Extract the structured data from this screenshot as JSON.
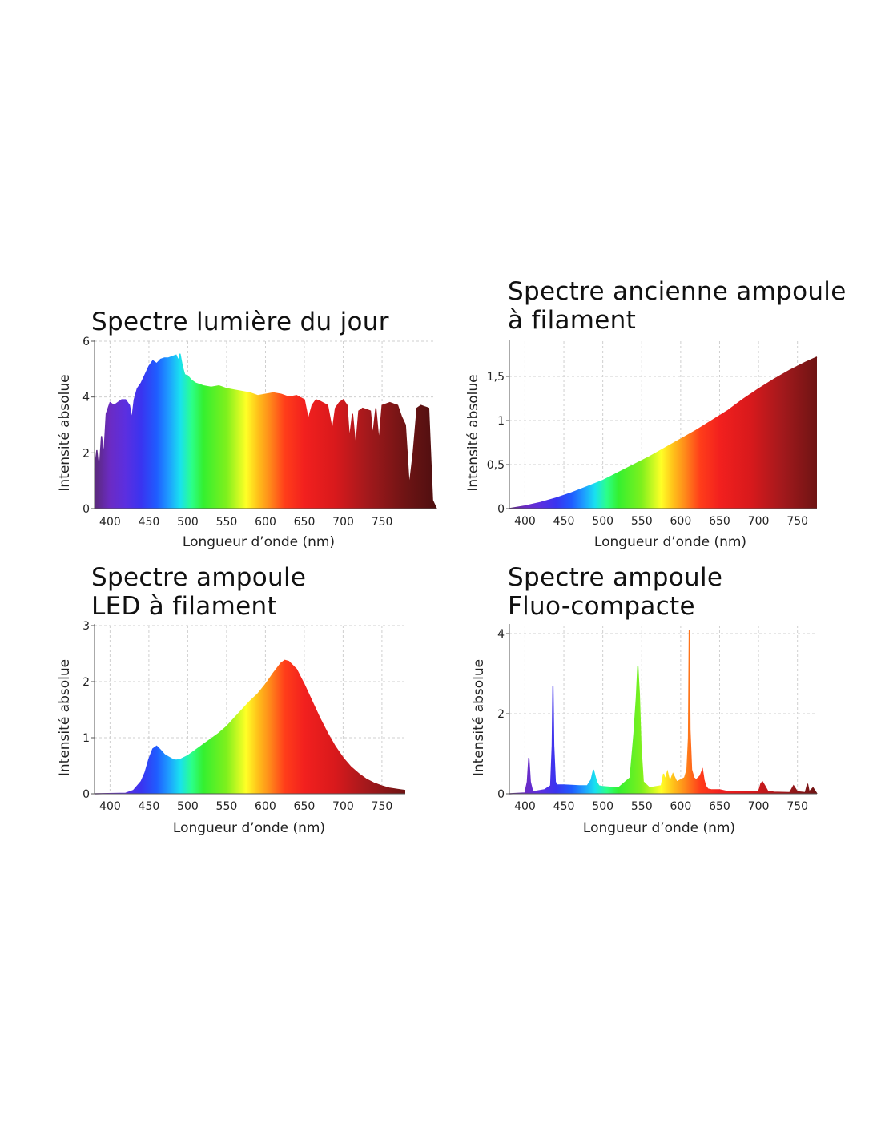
{
  "chart_data": [
    {
      "type": "area",
      "title_lines": [
        "Spectre lumière du jour"
      ],
      "xlabel": "Longueur d’onde (nm)",
      "ylabel": "Intensité absolue",
      "xlim": [
        380,
        820
      ],
      "ylim": [
        0,
        6
      ],
      "x_ticks": [
        400,
        450,
        500,
        550,
        600,
        650,
        700,
        750
      ],
      "x_tick_labels": [
        "400",
        "450",
        "500",
        "550",
        "600",
        "650",
        "700",
        "750"
      ],
      "y_ticks": [
        0,
        2,
        4,
        6
      ],
      "y_tick_labels": [
        "0",
        "2",
        "4",
        "6"
      ],
      "grid": true,
      "fill": "spectrum-gradient",
      "series": [
        {
          "x": [
            380,
            383,
            386,
            389,
            392,
            395,
            400,
            405,
            410,
            415,
            420,
            425,
            428,
            431,
            435,
            440,
            445,
            450,
            455,
            460,
            465,
            470,
            475,
            480,
            485,
            488,
            490,
            493,
            496,
            500,
            505,
            510,
            520,
            530,
            540,
            550,
            560,
            570,
            580,
            590,
            600,
            610,
            620,
            630,
            640,
            650,
            655,
            660,
            665,
            670,
            680,
            686,
            690,
            695,
            700,
            705,
            708,
            712,
            716,
            720,
            725,
            730,
            735,
            738,
            742,
            746,
            750,
            755,
            760,
            765,
            770,
            775,
            780,
            785,
            790,
            795,
            800,
            805,
            810,
            815,
            820
          ],
          "y": [
            1.4,
            2.1,
            1.3,
            2.6,
            1.9,
            3.4,
            3.8,
            3.7,
            3.8,
            3.9,
            3.9,
            3.7,
            3.2,
            3.9,
            4.3,
            4.5,
            4.8,
            5.1,
            5.3,
            5.2,
            5.35,
            5.4,
            5.4,
            5.45,
            5.5,
            5.3,
            5.55,
            5.1,
            4.8,
            4.75,
            4.6,
            4.5,
            4.4,
            4.35,
            4.4,
            4.3,
            4.25,
            4.2,
            4.15,
            4.05,
            4.1,
            4.15,
            4.1,
            4.0,
            4.05,
            3.9,
            3.2,
            3.7,
            3.9,
            3.85,
            3.7,
            2.8,
            3.6,
            3.8,
            3.9,
            3.7,
            2.5,
            3.4,
            2.2,
            3.5,
            3.6,
            3.55,
            3.5,
            2.6,
            3.6,
            2.4,
            3.7,
            3.75,
            3.8,
            3.75,
            3.7,
            3.3,
            3.0,
            0.8,
            2.0,
            3.6,
            3.7,
            3.65,
            3.6,
            0.3,
            0
          ]
        }
      ]
    },
    {
      "type": "area",
      "title_lines": [
        "Spectre ancienne ampoule",
        "à filament"
      ],
      "xlabel": "Longueur d’onde (nm)",
      "ylabel": "Intensité absolue",
      "xlim": [
        380,
        775
      ],
      "ylim": [
        0,
        1.9
      ],
      "x_ticks": [
        400,
        450,
        500,
        550,
        600,
        650,
        700,
        750
      ],
      "x_tick_labels": [
        "400",
        "450",
        "500",
        "550",
        "600",
        "650",
        "700",
        "750"
      ],
      "y_ticks": [
        0,
        0.5,
        1,
        1.5
      ],
      "y_tick_labels": [
        "0",
        "0,5",
        "1",
        "1,5"
      ],
      "grid": true,
      "fill": "spectrum-gradient",
      "series": [
        {
          "x": [
            380,
            400,
            420,
            440,
            460,
            480,
            500,
            520,
            540,
            560,
            580,
            600,
            620,
            640,
            660,
            680,
            700,
            720,
            740,
            760,
            775
          ],
          "y": [
            0,
            0.03,
            0.07,
            0.12,
            0.18,
            0.25,
            0.32,
            0.41,
            0.5,
            0.59,
            0.69,
            0.79,
            0.89,
            1.0,
            1.11,
            1.24,
            1.36,
            1.47,
            1.57,
            1.66,
            1.72
          ]
        }
      ]
    },
    {
      "type": "area",
      "title_lines": [
        "Spectre ampoule",
        "LED à filament"
      ],
      "xlabel": "Longueur d’onde (nm)",
      "ylabel": "Intensité absolue",
      "xlim": [
        380,
        780
      ],
      "ylim": [
        0,
        3
      ],
      "x_ticks": [
        400,
        450,
        500,
        550,
        600,
        650,
        700,
        750
      ],
      "x_tick_labels": [
        "400",
        "450",
        "500",
        "550",
        "600",
        "650",
        "700",
        "750"
      ],
      "y_ticks": [
        0,
        1,
        2,
        3
      ],
      "y_tick_labels": [
        "0",
        "1",
        "2",
        "3"
      ],
      "grid": true,
      "fill": "spectrum-gradient",
      "series": [
        {
          "x": [
            380,
            420,
            430,
            440,
            445,
            450,
            455,
            460,
            465,
            470,
            475,
            480,
            485,
            490,
            500,
            510,
            520,
            530,
            540,
            550,
            560,
            570,
            580,
            590,
            600,
            610,
            620,
            625,
            630,
            640,
            650,
            660,
            670,
            680,
            690,
            700,
            710,
            720,
            730,
            740,
            750,
            760,
            770,
            780
          ],
          "y": [
            0,
            0.01,
            0.06,
            0.22,
            0.38,
            0.62,
            0.8,
            0.85,
            0.78,
            0.7,
            0.66,
            0.62,
            0.6,
            0.61,
            0.68,
            0.78,
            0.88,
            0.98,
            1.08,
            1.2,
            1.35,
            1.5,
            1.65,
            1.78,
            1.95,
            2.15,
            2.33,
            2.38,
            2.36,
            2.22,
            1.95,
            1.65,
            1.35,
            1.08,
            0.84,
            0.64,
            0.48,
            0.36,
            0.26,
            0.19,
            0.14,
            0.1,
            0.08,
            0.06
          ]
        }
      ]
    },
    {
      "type": "area",
      "title_lines": [
        "Spectre ampoule",
        "Fluo-compacte"
      ],
      "xlabel": "Longueur d’onde (nm)",
      "ylabel": "Intensité absolue",
      "xlim": [
        380,
        775
      ],
      "ylim": [
        0,
        4.2
      ],
      "x_ticks": [
        400,
        450,
        500,
        550,
        600,
        650,
        700,
        750
      ],
      "x_tick_labels": [
        "400",
        "450",
        "500",
        "550",
        "600",
        "650",
        "700",
        "750"
      ],
      "y_ticks": [
        0,
        2,
        4
      ],
      "y_tick_labels": [
        "0",
        "2",
        "4"
      ],
      "grid": true,
      "fill": "spectrum-gradient",
      "series": [
        {
          "x": [
            380,
            400,
            403,
            405,
            407,
            410,
            425,
            433,
            435,
            436,
            437,
            439,
            441,
            450,
            470,
            480,
            485,
            488,
            490,
            492,
            495,
            500,
            520,
            535,
            540,
            543,
            545,
            546,
            547,
            549,
            552,
            560,
            575,
            578,
            580,
            583,
            586,
            590,
            595,
            600,
            605,
            608,
            610,
            611,
            612,
            614,
            617,
            620,
            625,
            628,
            630,
            632,
            635,
            640,
            650,
            660,
            680,
            700,
            703,
            705,
            708,
            712,
            720,
            740,
            745,
            750,
            760,
            763,
            765,
            770,
            775
          ],
          "y": [
            0,
            0.02,
            0.3,
            0.9,
            0.3,
            0.05,
            0.1,
            0.2,
            1.2,
            2.7,
            1.2,
            0.3,
            0.22,
            0.22,
            0.2,
            0.2,
            0.35,
            0.6,
            0.45,
            0.3,
            0.2,
            0.18,
            0.15,
            0.4,
            1.5,
            2.4,
            3.2,
            2.8,
            2.5,
            1.2,
            0.3,
            0.15,
            0.2,
            0.5,
            0.35,
            0.55,
            0.3,
            0.5,
            0.3,
            0.35,
            0.4,
            0.6,
            1.4,
            4.1,
            1.6,
            0.6,
            0.4,
            0.35,
            0.45,
            0.6,
            0.35,
            0.2,
            0.12,
            0.1,
            0.1,
            0.06,
            0.05,
            0.05,
            0.25,
            0.3,
            0.2,
            0.06,
            0.04,
            0.03,
            0.2,
            0.05,
            0.03,
            0.25,
            0.05,
            0.15,
            0
          ]
        }
      ]
    }
  ]
}
